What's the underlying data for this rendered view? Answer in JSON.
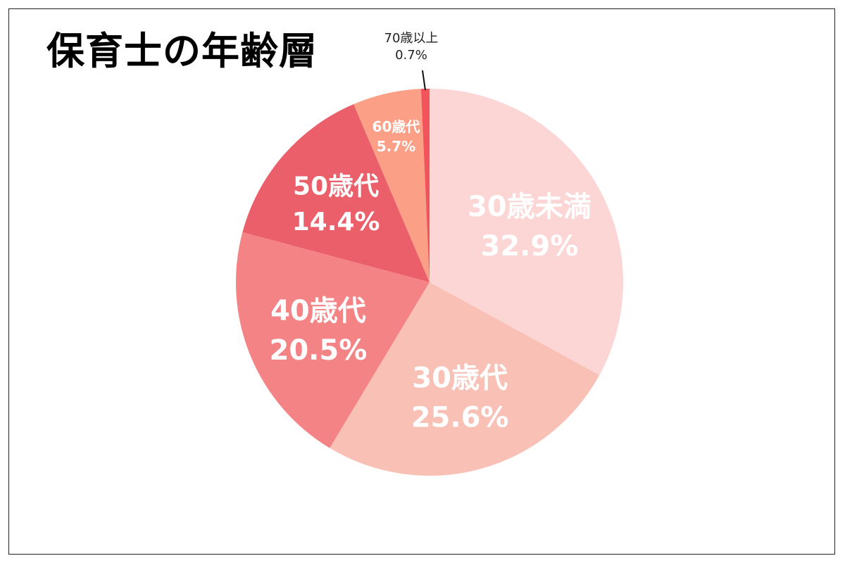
{
  "title": "保育士の年齢層",
  "chart_data": {
    "type": "pie",
    "title": "保育士の年齢層",
    "slices": [
      {
        "name": "30歳未満",
        "value": 32.9,
        "label": "32.9%",
        "color": "#fcd5d5"
      },
      {
        "name": "30歳代",
        "value": 25.6,
        "label": "25.6%",
        "color": "#f9c1b6"
      },
      {
        "name": "40歳代",
        "value": 20.5,
        "label": "20.5%",
        "color": "#f48385"
      },
      {
        "name": "50歳代",
        "value": 14.4,
        "label": "14.4%",
        "color": "#ea5f69"
      },
      {
        "name": "60歳代",
        "value": 5.7,
        "label": "5.7%",
        "color": "#fb9f86"
      },
      {
        "name": "70歳以上",
        "value": 0.7,
        "label": "0.7%",
        "color": "#f2545b"
      }
    ],
    "start": "top",
    "direction": "clockwise",
    "legend": "none"
  }
}
